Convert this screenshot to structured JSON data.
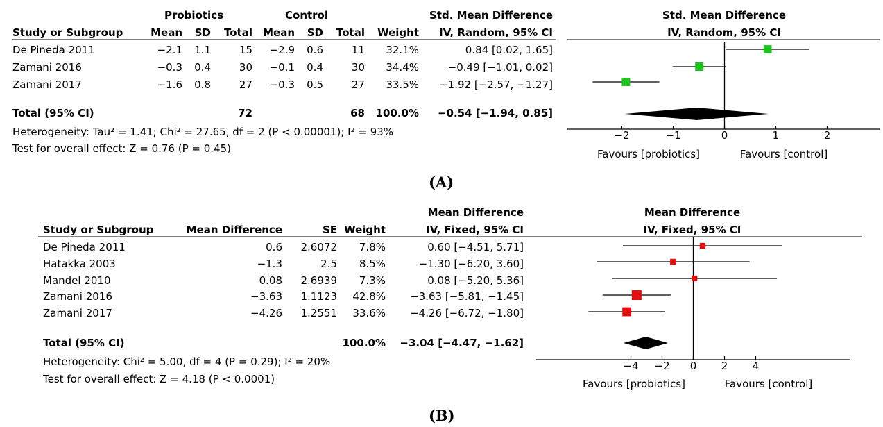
{
  "chart_data": [
    {
      "type": "forest",
      "caption": "(A)",
      "headers": {
        "group1": "Probiotics",
        "group2": "Control",
        "effect_col": "Std. Mean Difference",
        "effect_col_sub": "IV, Random, 95% CI",
        "plot_title": "Std. Mean Difference",
        "plot_subtitle": "IV, Random, 95% CI",
        "study": "Study or Subgroup",
        "mean": "Mean",
        "sd": "SD",
        "total": "Total",
        "weight": "Weight"
      },
      "studies": [
        {
          "name": "De Pineda 2011",
          "m1": "−2.1",
          "sd1": "1.1",
          "n1": "15",
          "m2": "−2.9",
          "sd2": "0.6",
          "n2": "11",
          "weight": "32.1%",
          "ci_text": "0.84 [0.02, 1.65]",
          "est": 0.84,
          "lo": 0.02,
          "hi": 1.65,
          "w": 32.1
        },
        {
          "name": "Zamani 2016",
          "m1": "−0.3",
          "sd1": "0.4",
          "n1": "30",
          "m2": "−0.1",
          "sd2": "0.4",
          "n2": "30",
          "weight": "34.4%",
          "ci_text": "−0.49 [−1.01, 0.02]",
          "est": -0.49,
          "lo": -1.01,
          "hi": 0.02,
          "w": 34.4
        },
        {
          "name": "Zamani 2017",
          "m1": "−1.6",
          "sd1": "0.8",
          "n1": "27",
          "m2": "−0.3",
          "sd2": "0.5",
          "n2": "27",
          "weight": "33.5%",
          "ci_text": "−1.92 [−2.57, −1.27]",
          "est": -1.92,
          "lo": -2.57,
          "hi": -1.27,
          "w": 33.5
        }
      ],
      "total": {
        "label": "Total (95% CI)",
        "n1": "72",
        "n2": "68",
        "weight": "100.0%",
        "ci_text": "−0.54 [−1.94, 0.85]",
        "est": -0.54,
        "lo": -1.94,
        "hi": 0.85
      },
      "heterogeneity": "Heterogeneity: Tau² = 1.41; Chi² = 27.65, df = 2 (P < 0.00001); I² = 93%",
      "overall_effect": "Test for overall effect: Z = 0.76 (P = 0.45)",
      "xlim": [
        -3,
        3
      ],
      "ticks": [
        -2,
        -1,
        0,
        1,
        2
      ],
      "tick_labels": [
        "−2",
        "−1",
        "0",
        "1",
        "2"
      ],
      "favours_left": "Favours [probiotics]",
      "favours_right": "Favours [control]",
      "marker_color": "#1fc01f"
    },
    {
      "type": "forest",
      "caption": "(B)",
      "headers": {
        "effect_col": "Mean Difference",
        "effect_col_sub": "IV, Fixed, 95% CI",
        "plot_title": "Mean Difference",
        "plot_subtitle": "IV, Fixed, 95% CI",
        "study": "Study or Subgroup",
        "md": "Mean Difference",
        "se": "SE",
        "weight": "Weight"
      },
      "studies": [
        {
          "name": "De Pineda 2011",
          "md": "0.6",
          "se": "2.6072",
          "weight": "7.8%",
          "ci_text": "0.60 [−4.51, 5.71]",
          "est": 0.6,
          "lo": -4.51,
          "hi": 5.71,
          "w": 7.8
        },
        {
          "name": "Hatakka 2003",
          "md": "−1.3",
          "se": "2.5",
          "weight": "8.5%",
          "ci_text": "−1.30 [−6.20, 3.60]",
          "est": -1.3,
          "lo": -6.2,
          "hi": 3.6,
          "w": 8.5
        },
        {
          "name": "Mandel 2010",
          "md": "0.08",
          "se": "2.6939",
          "weight": "7.3%",
          "ci_text": "0.08 [−5.20, 5.36]",
          "est": 0.08,
          "lo": -5.2,
          "hi": 5.36,
          "w": 7.3
        },
        {
          "name": "Zamani 2016",
          "md": "−3.63",
          "se": "1.1123",
          "weight": "42.8%",
          "ci_text": "−3.63 [−5.81, −1.45]",
          "est": -3.63,
          "lo": -5.81,
          "hi": -1.45,
          "w": 42.8
        },
        {
          "name": "Zamani 2017",
          "md": "−4.26",
          "se": "1.2551",
          "weight": "33.6%",
          "ci_text": "−4.26 [−6.72, −1.80]",
          "est": -4.26,
          "lo": -6.72,
          "hi": -1.8,
          "w": 33.6
        }
      ],
      "total": {
        "label": "Total (95% CI)",
        "weight": "100.0%",
        "ci_text": "−3.04 [−4.47, −1.62]",
        "est": -3.04,
        "lo": -4.47,
        "hi": -1.62
      },
      "heterogeneity": "Heterogeneity: Chi² = 5.00, df = 4 (P = 0.29); I² = 20%",
      "overall_effect": "Test for overall effect: Z = 4.18 (P < 0.0001)",
      "xlim": [
        -7,
        7
      ],
      "ticks": [
        -4,
        -2,
        0,
        2,
        4
      ],
      "tick_labels": [
        "−4",
        "−2",
        "0",
        "2",
        "4"
      ],
      "favours_left": "Favours [probiotics]",
      "favours_right": "Favours [control]",
      "marker_color": "#e01010"
    }
  ]
}
